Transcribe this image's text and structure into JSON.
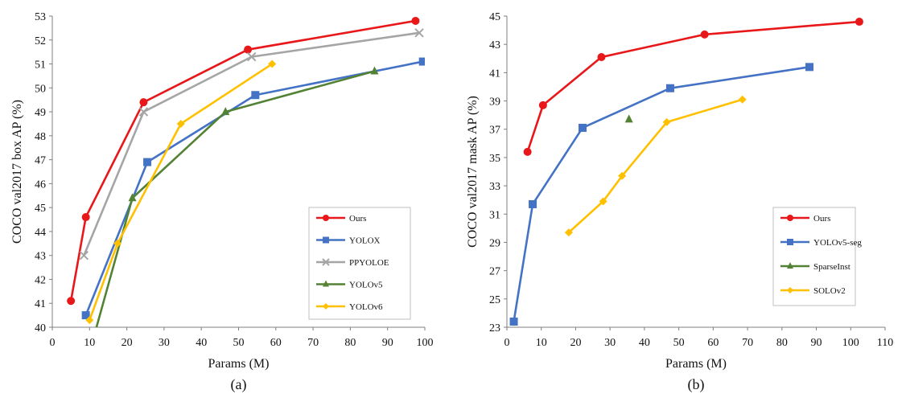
{
  "chart_data": [
    {
      "type": "line",
      "subcaption": "(a)",
      "xlabel": "Params (M)",
      "ylabel": "COCO val2017 box AP (%)",
      "xlim": [
        0,
        100
      ],
      "ylim": [
        40,
        53
      ],
      "xticks": [
        0,
        10,
        20,
        30,
        40,
        50,
        60,
        70,
        80,
        90,
        100
      ],
      "yticks": [
        40,
        41,
        42,
        43,
        44,
        45,
        46,
        47,
        48,
        49,
        50,
        51,
        52,
        53
      ],
      "legend_position": "bottom-right",
      "series": [
        {
          "name": "Ours",
          "color": "#e8171a",
          "marker": "circle",
          "x": [
            5,
            9,
            24.5,
            52.5,
            97.5
          ],
          "y": [
            41.1,
            44.6,
            49.4,
            51.6,
            52.8
          ]
        },
        {
          "name": "YOLOX",
          "color": "#4472c4",
          "marker": "square",
          "x": [
            9,
            25.5,
            54.5,
            99.5
          ],
          "y": [
            40.5,
            46.9,
            49.7,
            51.1
          ]
        },
        {
          "name": "PPYOLOE",
          "color": "#a5a5a5",
          "marker": "x",
          "x": [
            8.5,
            24.5,
            53.5,
            98.5
          ],
          "y": [
            43.0,
            49.0,
            51.3,
            52.3
          ]
        },
        {
          "name": "YOLOv5",
          "color": "#548235",
          "marker": "triangle",
          "x": [
            11.5,
            21.5,
            46.5,
            86.5
          ],
          "y": [
            39.8,
            45.4,
            49.0,
            50.7
          ]
        },
        {
          "name": "YOLOv6",
          "color": "#ffc000",
          "marker": "diamond",
          "x": [
            10,
            17.5,
            34.5,
            59
          ],
          "y": [
            40.3,
            43.5,
            48.5,
            51.0
          ]
        }
      ]
    },
    {
      "type": "line",
      "subcaption": "(b)",
      "xlabel": "Params (M)",
      "ylabel": "COCO val2017  mask AP (%)",
      "xlim": [
        0,
        110
      ],
      "ylim": [
        23,
        45
      ],
      "xticks": [
        0,
        10,
        20,
        30,
        40,
        50,
        60,
        70,
        80,
        90,
        100,
        110
      ],
      "yticks": [
        23,
        25,
        27,
        29,
        31,
        33,
        35,
        37,
        39,
        41,
        43,
        45
      ],
      "legend_position": "bottom-right",
      "series": [
        {
          "name": "Ours",
          "color": "#e8171a",
          "marker": "circle",
          "x": [
            6,
            10.5,
            27.5,
            57.5,
            102.5
          ],
          "y": [
            35.4,
            38.7,
            42.1,
            43.7,
            44.6
          ]
        },
        {
          "name": "YOLOv5-seg",
          "color": "#4472c4",
          "marker": "square",
          "x": [
            2,
            7.5,
            22,
            47.5,
            88
          ],
          "y": [
            23.4,
            31.7,
            37.1,
            39.9,
            41.4
          ]
        },
        {
          "name": "SparseInst",
          "color": "#548235",
          "marker": "triangle",
          "x": [
            35.5
          ],
          "y": [
            37.7
          ]
        },
        {
          "name": "SOLOv2",
          "color": "#ffc000",
          "marker": "diamond",
          "x": [
            18,
            28,
            33.5,
            46.5,
            68.5
          ],
          "y": [
            29.7,
            31.9,
            33.7,
            37.5,
            39.1
          ]
        }
      ]
    }
  ]
}
